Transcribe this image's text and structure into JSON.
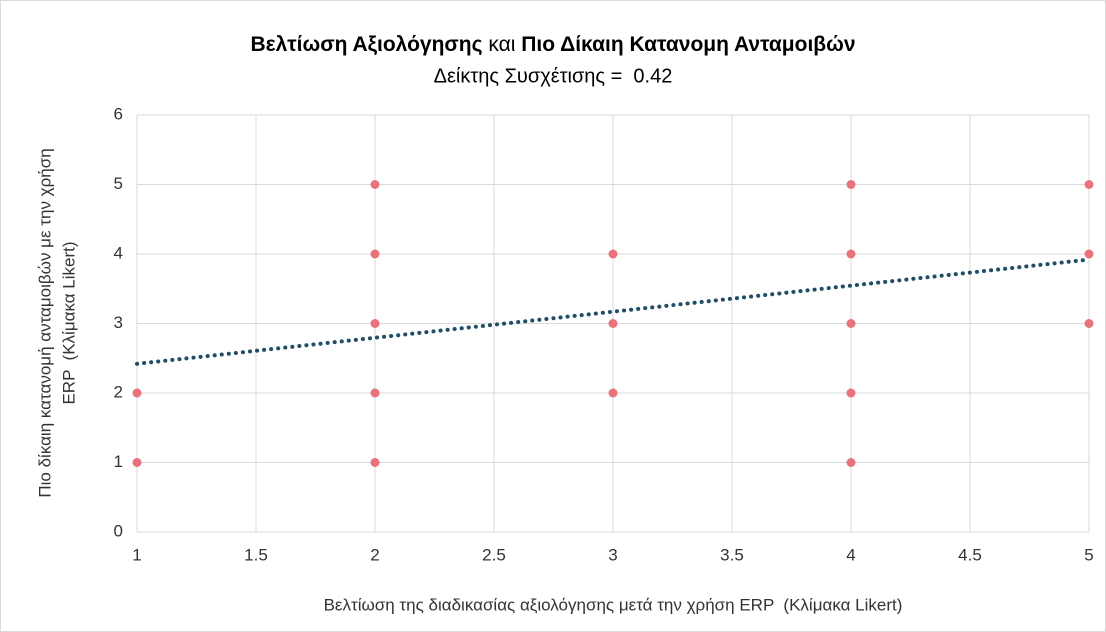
{
  "chart_data": {
    "type": "scatter",
    "title": [
      "Βελτίωση Αξιολόγησης",
      " και ",
      "Πιο Δίκαιη Κατανομη Ανταμοιβών"
    ],
    "subtitle": "Δείκτης Συσχέτισης =  0.42",
    "x_label": "Βελτίωση της διαδικασίας αξιολόγησης μετά την χρήση ERP  (Κλίμακα Likert)",
    "y_label": [
      "Πιο δίκαιη κατανομή ανταμοιβών με την χρήση",
      "ERP  (Κλίμακα Likert)"
    ],
    "series": [
      {
        "color": "#e8737a",
        "x": [
          1,
          1,
          2,
          2,
          2,
          2,
          2,
          3,
          3,
          3,
          4,
          4,
          4,
          4,
          4,
          5,
          5,
          5
        ],
        "values": [
          2,
          1,
          5,
          4,
          3,
          2,
          1,
          4,
          3,
          2,
          5,
          4,
          3,
          2,
          1,
          5,
          4,
          3
        ]
      }
    ],
    "trendline": {
      "color": "#1f4e66",
      "x": [
        1,
        5
      ],
      "y": [
        2.42,
        3.92
      ]
    },
    "xlim": [
      1,
      5
    ],
    "xticks": [
      1,
      1.5,
      2,
      2.5,
      3,
      3.5,
      4,
      4.5,
      5
    ],
    "ylim": [
      0,
      6
    ],
    "yticks": [
      0,
      1,
      2,
      3,
      4,
      5,
      6
    ],
    "grid": true
  }
}
